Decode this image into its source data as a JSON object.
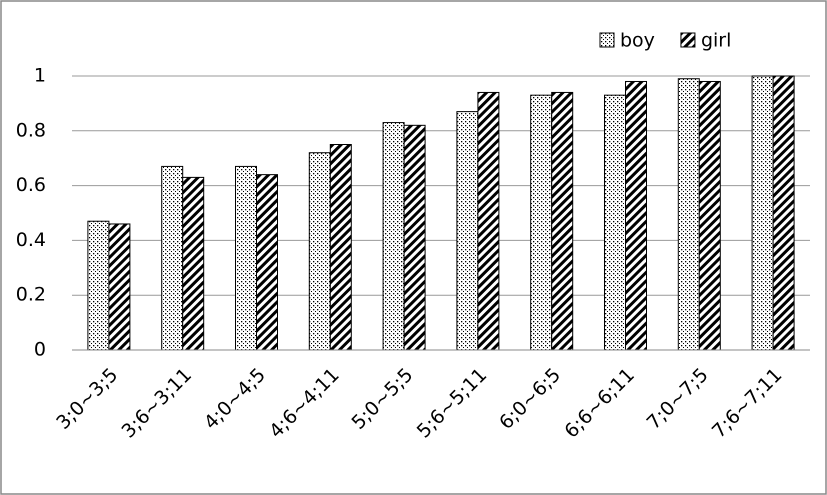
{
  "chart_data": {
    "type": "bar",
    "categories": [
      "3;0~3;5",
      "3;6~3;11",
      "4;0~4;5",
      "4;6~4;11",
      "5;0~5;5",
      "5;6~5;11",
      "6;0~6;5",
      "6;6~6;11",
      "7;0~7;5",
      "7;6~7;11"
    ],
    "series": [
      {
        "name": "boy",
        "color": "#000000",
        "pattern": "dots",
        "values": [
          0.47,
          0.67,
          0.67,
          0.72,
          0.83,
          0.87,
          0.93,
          0.93,
          0.99,
          1.0
        ]
      },
      {
        "name": "girl",
        "color": "#000000",
        "pattern": "hatch",
        "values": [
          0.46,
          0.63,
          0.64,
          0.75,
          0.82,
          0.94,
          0.94,
          0.98,
          0.98,
          1.0
        ]
      }
    ],
    "ylim": [
      0,
      1
    ],
    "yticks": [
      0,
      0.2,
      0.4,
      0.6,
      0.8,
      1
    ],
    "grid": true,
    "legend": "top-right"
  }
}
